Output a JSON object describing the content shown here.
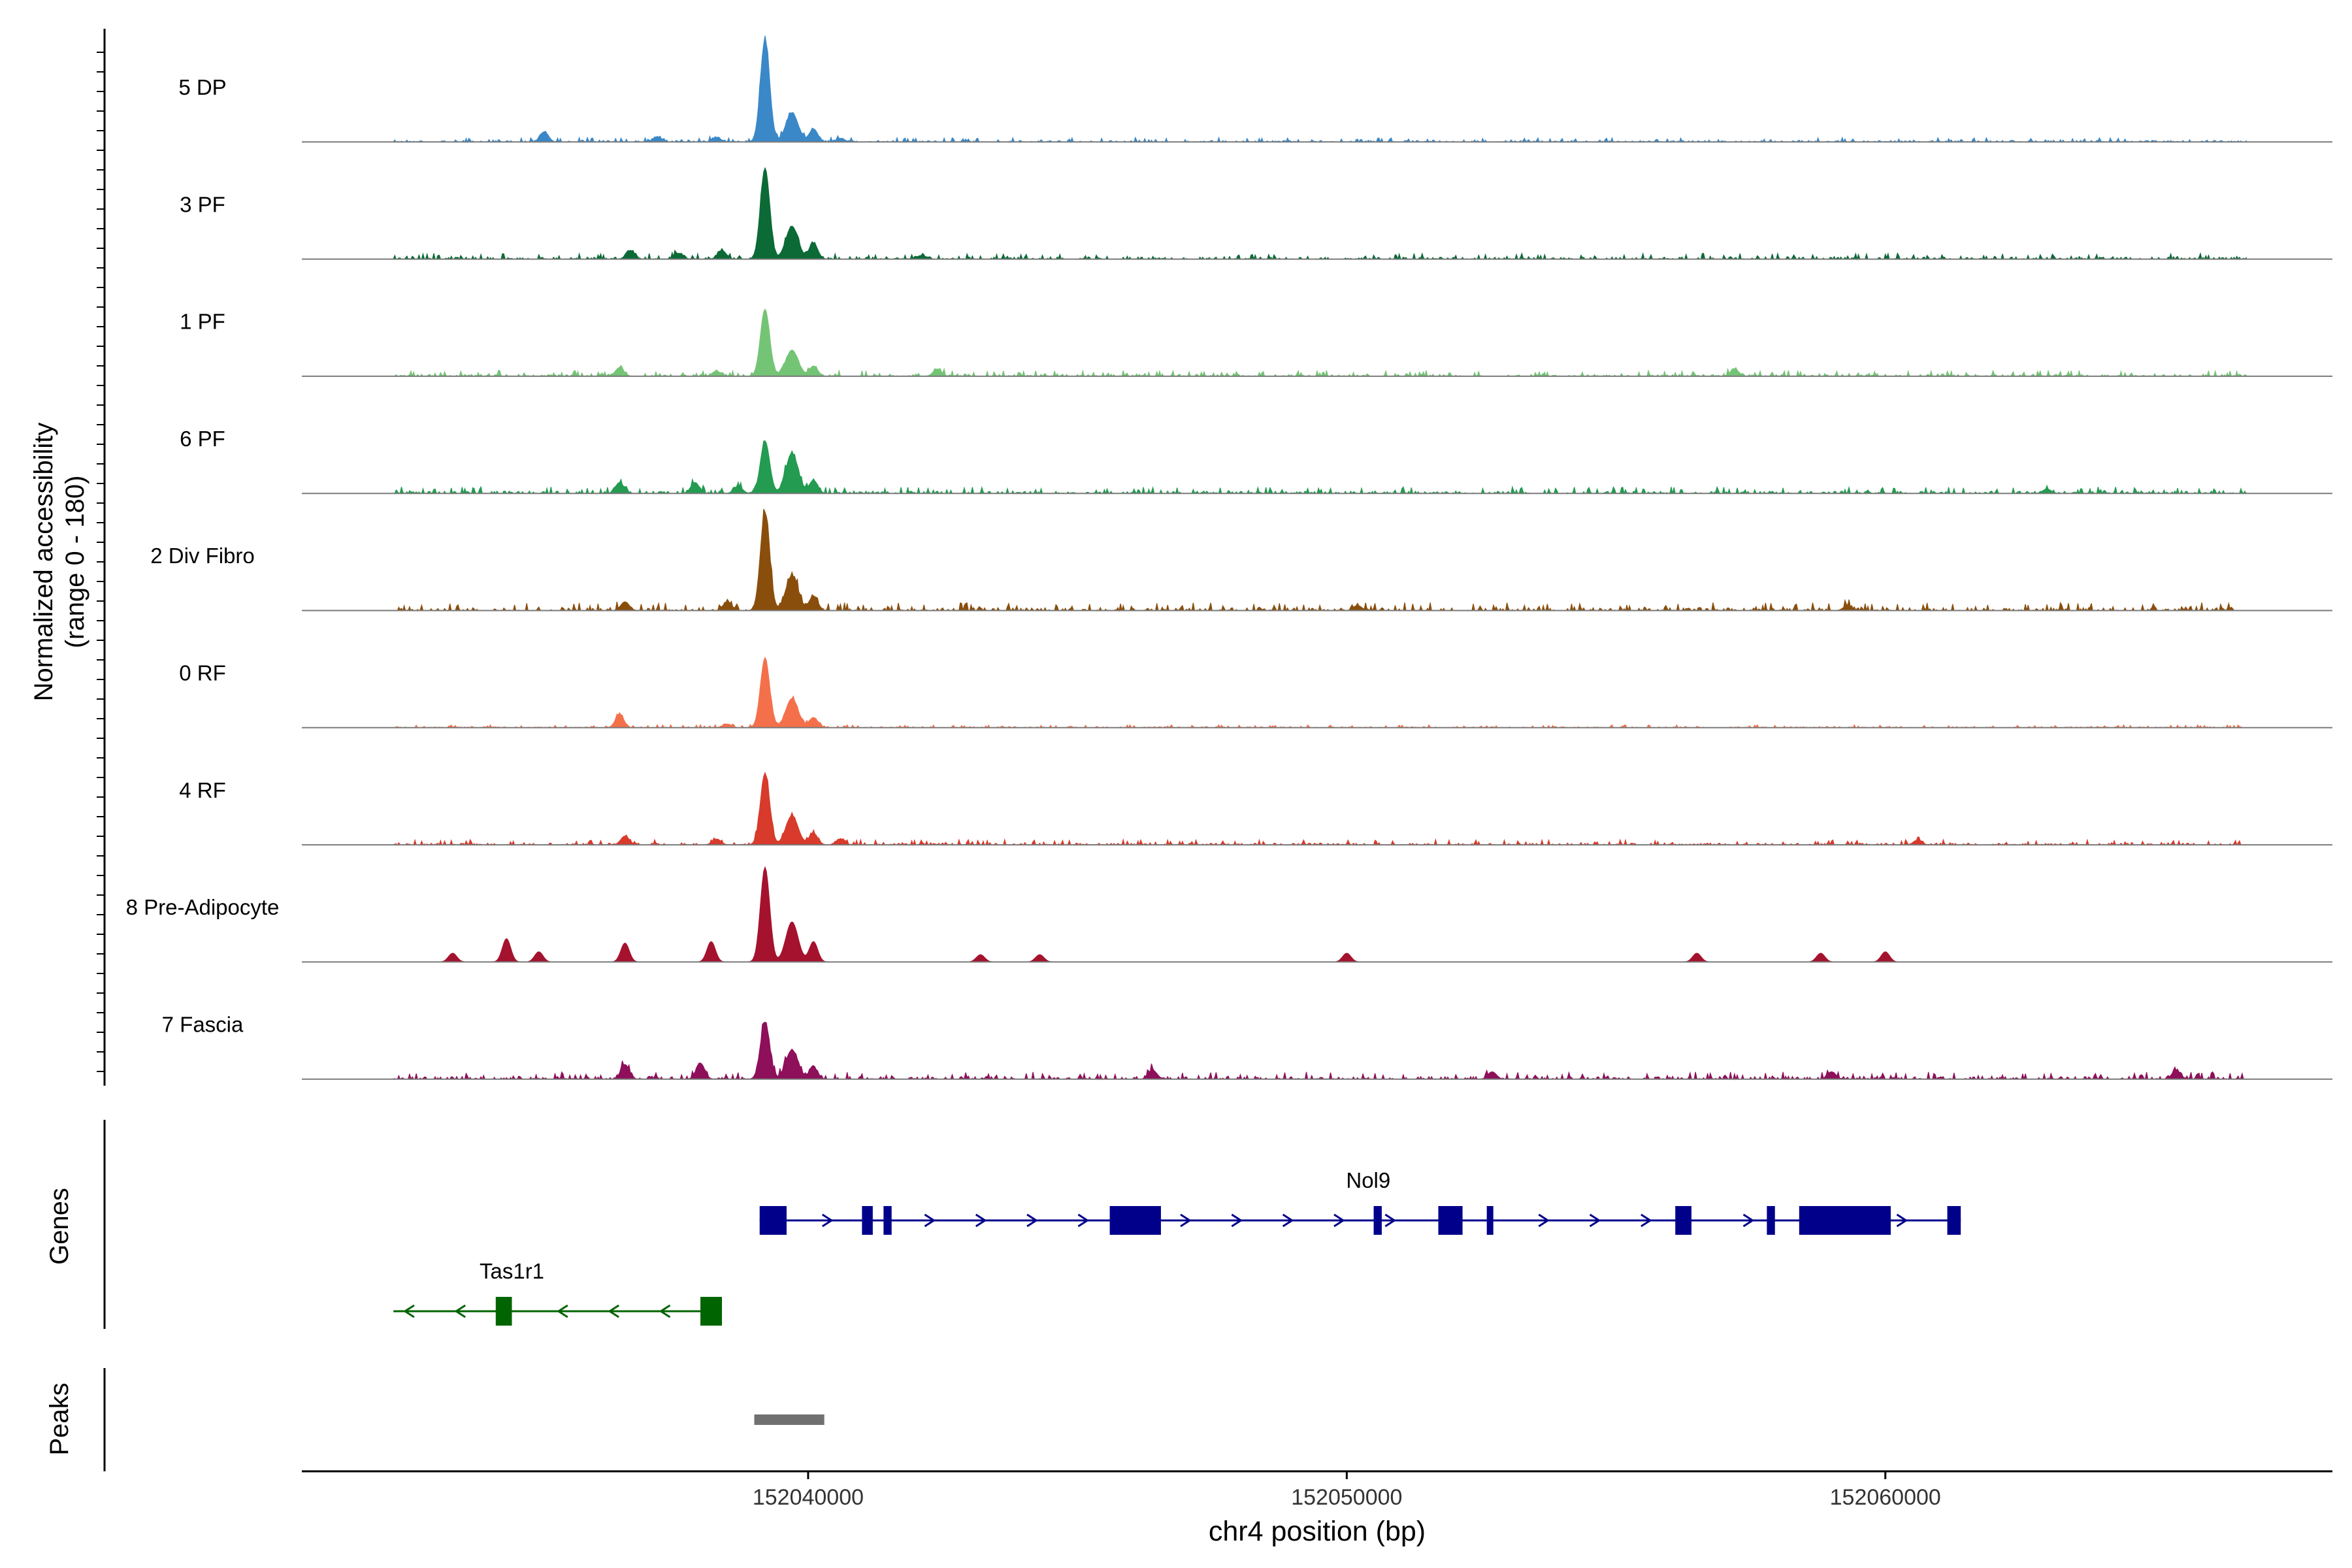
{
  "chart_data": {
    "type": "area",
    "title": "",
    "ylabel_line1": "Normalized accessibility",
    "ylabel_line2": "(range 0 - 180)",
    "xlabel": "chr4 position (bp)",
    "xlim": [
      152030600,
      152068300
    ],
    "ylim": [
      0,
      180
    ],
    "x_ticks": [
      152040000,
      152050000,
      152060000
    ],
    "x_tick_labels": [
      "152040000",
      "152050000",
      "152060000"
    ],
    "peak_centers": [
      152039200,
      152039700,
      152040100
    ],
    "series": [
      {
        "name": "5 DP",
        "color": "#3A88C8",
        "peak_heights": [
          140,
          40,
          18
        ],
        "noise": 6,
        "bumps": [
          [
            152035100,
            14
          ],
          [
            152037200,
            7
          ],
          [
            152038300,
            6
          ],
          [
            152040600,
            5
          ]
        ]
      },
      {
        "name": "3 PF",
        "color": "#0B6A36",
        "peak_heights": [
          125,
          45,
          22
        ],
        "noise": 8,
        "bumps": [
          [
            152036700,
            12
          ],
          [
            152038400,
            12
          ],
          [
            152037600,
            8
          ],
          [
            152042100,
            5
          ]
        ]
      },
      {
        "name": "1 PF",
        "color": "#74C476",
        "peak_heights": [
          92,
          36,
          14
        ],
        "noise": 8,
        "bumps": [
          [
            152036500,
            12
          ],
          [
            152042400,
            10
          ],
          [
            152057200,
            10
          ],
          [
            152038300,
            7
          ]
        ]
      },
      {
        "name": "6 PF",
        "color": "#239B50",
        "peak_heights": [
          72,
          55,
          18
        ],
        "noise": 9,
        "bumps": [
          [
            152036500,
            15
          ],
          [
            152037900,
            15
          ],
          [
            152038700,
            10
          ],
          [
            152063000,
            6
          ]
        ]
      },
      {
        "name": "2 Div Fibro",
        "color": "#8A4E0C",
        "peak_heights": [
          135,
          48,
          20
        ],
        "noise": 11,
        "bumps": [
          [
            152036600,
            12
          ],
          [
            152038500,
            12
          ],
          [
            152050200,
            7
          ],
          [
            152059300,
            7
          ]
        ]
      },
      {
        "name": "0 RF",
        "color": "#F4704A",
        "peak_heights": [
          95,
          40,
          14
        ],
        "noise": 4,
        "bumps": [
          [
            152036500,
            18
          ],
          [
            152038500,
            5
          ]
        ]
      },
      {
        "name": "4 RF",
        "color": "#D83A2B",
        "peak_heights": [
          98,
          40,
          16
        ],
        "noise": 7,
        "bumps": [
          [
            152036600,
            12
          ],
          [
            152038300,
            8
          ],
          [
            152040600,
            8
          ],
          [
            152060600,
            6
          ]
        ]
      },
      {
        "name": "8 Pre-Adipocyte",
        "color": "#A5122E",
        "peak_heights": [
          130,
          55,
          28
        ],
        "noise": 0,
        "bumps": [
          [
            152034400,
            32
          ],
          [
            152036600,
            26
          ],
          [
            152038200,
            28
          ],
          [
            152035000,
            14
          ],
          [
            152033400,
            12
          ],
          [
            152050000,
            12
          ],
          [
            152056500,
            12
          ],
          [
            152058800,
            12
          ],
          [
            152060000,
            14
          ],
          [
            152043200,
            10
          ],
          [
            152044300,
            10
          ]
        ]
      },
      {
        "name": "7 Fascia",
        "color": "#8E0F5A",
        "peak_heights": [
          78,
          40,
          16
        ],
        "noise": 10,
        "bumps": [
          [
            152036600,
            20
          ],
          [
            152038000,
            22
          ],
          [
            152046400,
            12
          ],
          [
            152052700,
            10
          ],
          [
            152059000,
            10
          ],
          [
            152065400,
            12
          ]
        ]
      }
    ],
    "genes": [
      {
        "name": "Nol9",
        "color": "#00008B",
        "strand": "+",
        "start": 152039100,
        "end": 152061400,
        "exons": [
          [
            152039100,
            152039600
          ],
          [
            152041000,
            152041200
          ],
          [
            152041400,
            152041550
          ],
          [
            152045600,
            152046550
          ],
          [
            152050500,
            152050650
          ],
          [
            152051700,
            152052150
          ],
          [
            152052600,
            152052700
          ],
          [
            152056100,
            152056400
          ],
          [
            152057800,
            152057950
          ],
          [
            152058400,
            152060100
          ],
          [
            152061150,
            152061400
          ]
        ]
      },
      {
        "name": "Tas1r1",
        "color": "#006400",
        "strand": "-",
        "start": 152032300,
        "end": 152038400,
        "exons": [
          [
            152034200,
            152034500
          ],
          [
            152038000,
            152038400
          ]
        ]
      }
    ],
    "genes_label": "Genes",
    "peaks_label": "Peaks",
    "peaks": [
      {
        "start": 152039000,
        "end": 152040300
      }
    ],
    "peak_color": "#707070"
  }
}
